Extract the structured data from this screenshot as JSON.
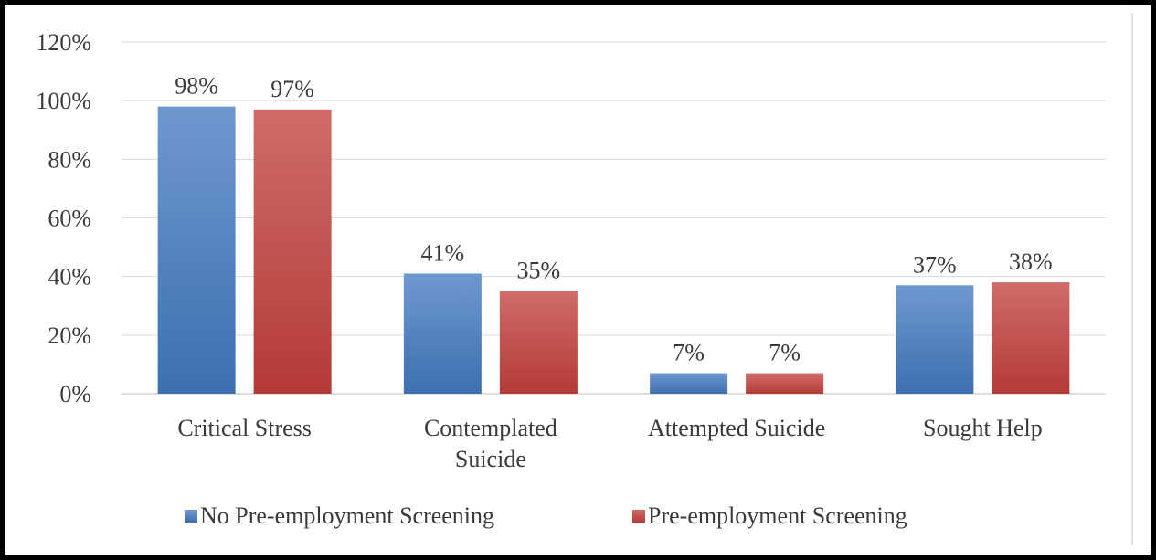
{
  "chart_data": {
    "type": "bar",
    "categories": [
      [
        "Critical Stress"
      ],
      [
        "Contemplated",
        "Suicide"
      ],
      [
        "Attempted Suicide"
      ],
      [
        "Sought Help"
      ]
    ],
    "series": [
      {
        "name": "No Pre-employment Screening",
        "values": [
          98,
          41,
          7,
          37
        ],
        "labels": [
          "98%",
          "41%",
          "7%",
          "37%"
        ],
        "color": "#4a7ebb"
      },
      {
        "name": "Pre-employment Screening",
        "values": [
          97,
          35,
          7,
          38
        ],
        "labels": [
          "97%",
          "35%",
          "7%",
          "38%"
        ],
        "color": "#be4b48"
      }
    ],
    "ylim": [
      0,
      120
    ],
    "yticks": [
      0,
      20,
      40,
      60,
      80,
      100,
      120
    ],
    "ytick_labels": [
      "0%",
      "20%",
      "40%",
      "60%",
      "80%",
      "100%",
      "120%"
    ],
    "grid": true,
    "legend_position": "bottom"
  }
}
